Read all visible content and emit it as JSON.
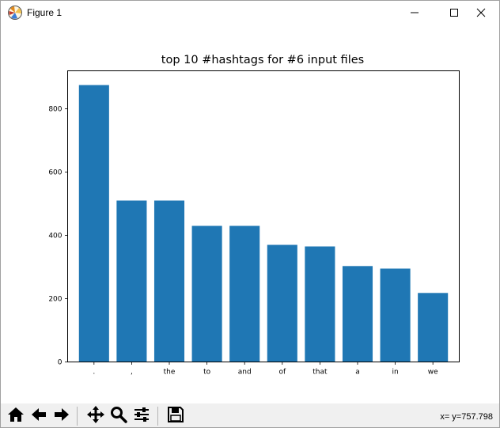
{
  "window": {
    "title": "Figure 1",
    "icon": "matplotlib-icon",
    "controls": [
      "minimize-icon",
      "maximize-icon",
      "close-icon"
    ]
  },
  "chart_data": {
    "type": "bar",
    "title": "top 10 #hashtags for #6 input files",
    "xlabel": "",
    "ylabel": "",
    "categories": [
      ".",
      ",",
      "the",
      "to",
      "and",
      "of",
      "that",
      "a",
      "in",
      "we"
    ],
    "values": [
      875,
      510,
      510,
      430,
      430,
      370,
      365,
      303,
      295,
      218
    ],
    "ylim": [
      0,
      920
    ],
    "yticks": [
      0,
      200,
      400,
      600,
      800
    ],
    "bar_color": "#1f77b4",
    "grid": false,
    "legend": "none"
  },
  "toolbar": {
    "buttons": [
      "home-icon",
      "back-icon",
      "forward-icon",
      "pan-icon",
      "zoom-icon",
      "configure-subplots-icon",
      "save-icon"
    ],
    "coordinate_readout": "x= y=757.798"
  }
}
